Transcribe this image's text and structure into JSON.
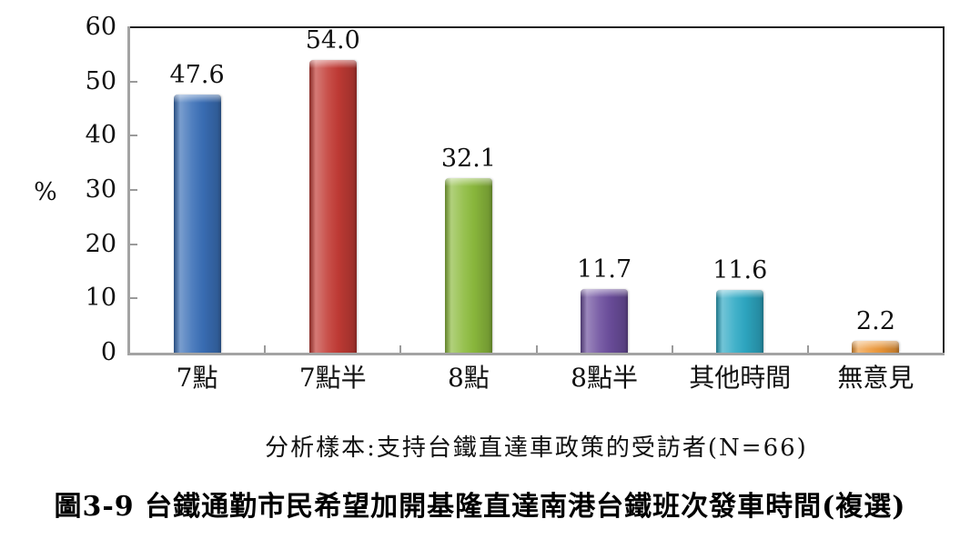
{
  "chart_data": {
    "type": "bar",
    "title": "圖3-9 台鐵通勤市民希望加開基隆直達南港台鐵班次發車時間(複選)",
    "note": "分析樣本:支持台鐵直達車政策的受訪者(N=66)",
    "ylabel": "%",
    "ylim": [
      0,
      60
    ],
    "yticks": [
      0,
      10,
      20,
      30,
      40,
      50,
      60
    ],
    "grid": false,
    "legend": "none",
    "categories": [
      "7點",
      "7點半",
      "8點",
      "8點半",
      "其他時間",
      "無意見"
    ],
    "values": [
      47.6,
      54.0,
      32.1,
      11.7,
      11.6,
      2.2
    ],
    "value_labels": [
      "47.6",
      "54.0",
      "32.1",
      "11.7",
      "11.6",
      "2.2"
    ],
    "bar_colors": [
      "#3a6fb7",
      "#c23b35",
      "#8cbb3d",
      "#6c4e9d",
      "#2ea9c4",
      "#ec9738"
    ],
    "frame_color": "#222222",
    "axis_color": "#a3a3a3"
  }
}
